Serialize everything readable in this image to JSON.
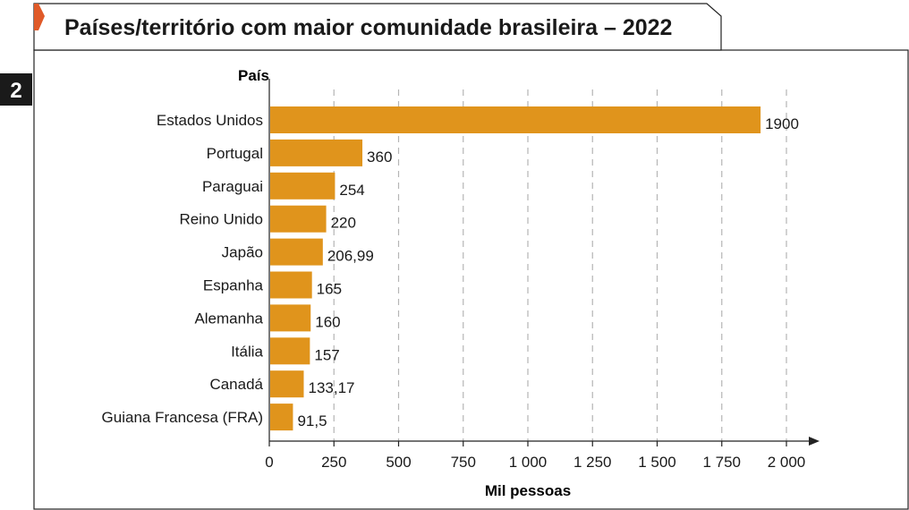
{
  "figure_number": "2",
  "colors": {
    "bar": "#E0941C",
    "tab_accent": "#E05A28",
    "frame": "#222222",
    "grid": "#b5b5b5",
    "badge": "#1a1a1a"
  },
  "chart_data": {
    "type": "bar",
    "orientation": "horizontal",
    "title": "Países/território com maior comunidade brasileira – 2022",
    "ylabel": "País",
    "xlabel": "Mil pessoas",
    "xlim": [
      0,
      2000
    ],
    "xticks": [
      0,
      250,
      500,
      750,
      1000,
      1250,
      1500,
      1750,
      2000
    ],
    "xtick_labels": [
      "0",
      "250",
      "500",
      "750",
      "1 000",
      "1 250",
      "1 500",
      "1 750",
      "2 000"
    ],
    "grid": "vertical dashed",
    "categories": [
      "Estados Unidos",
      "Portugal",
      "Paraguai",
      "Reino Unido",
      "Japão",
      "Espanha",
      "Alemanha",
      "Itália",
      "Canadá",
      "Guiana Francesa (FRA)"
    ],
    "values": [
      1900,
      360,
      254,
      220,
      206.99,
      165,
      160,
      157,
      133.17,
      91.5
    ],
    "value_labels": [
      "1900",
      "360",
      "254",
      "220",
      "206,99",
      "165",
      "160",
      "157",
      "133,17",
      "91,5"
    ]
  }
}
